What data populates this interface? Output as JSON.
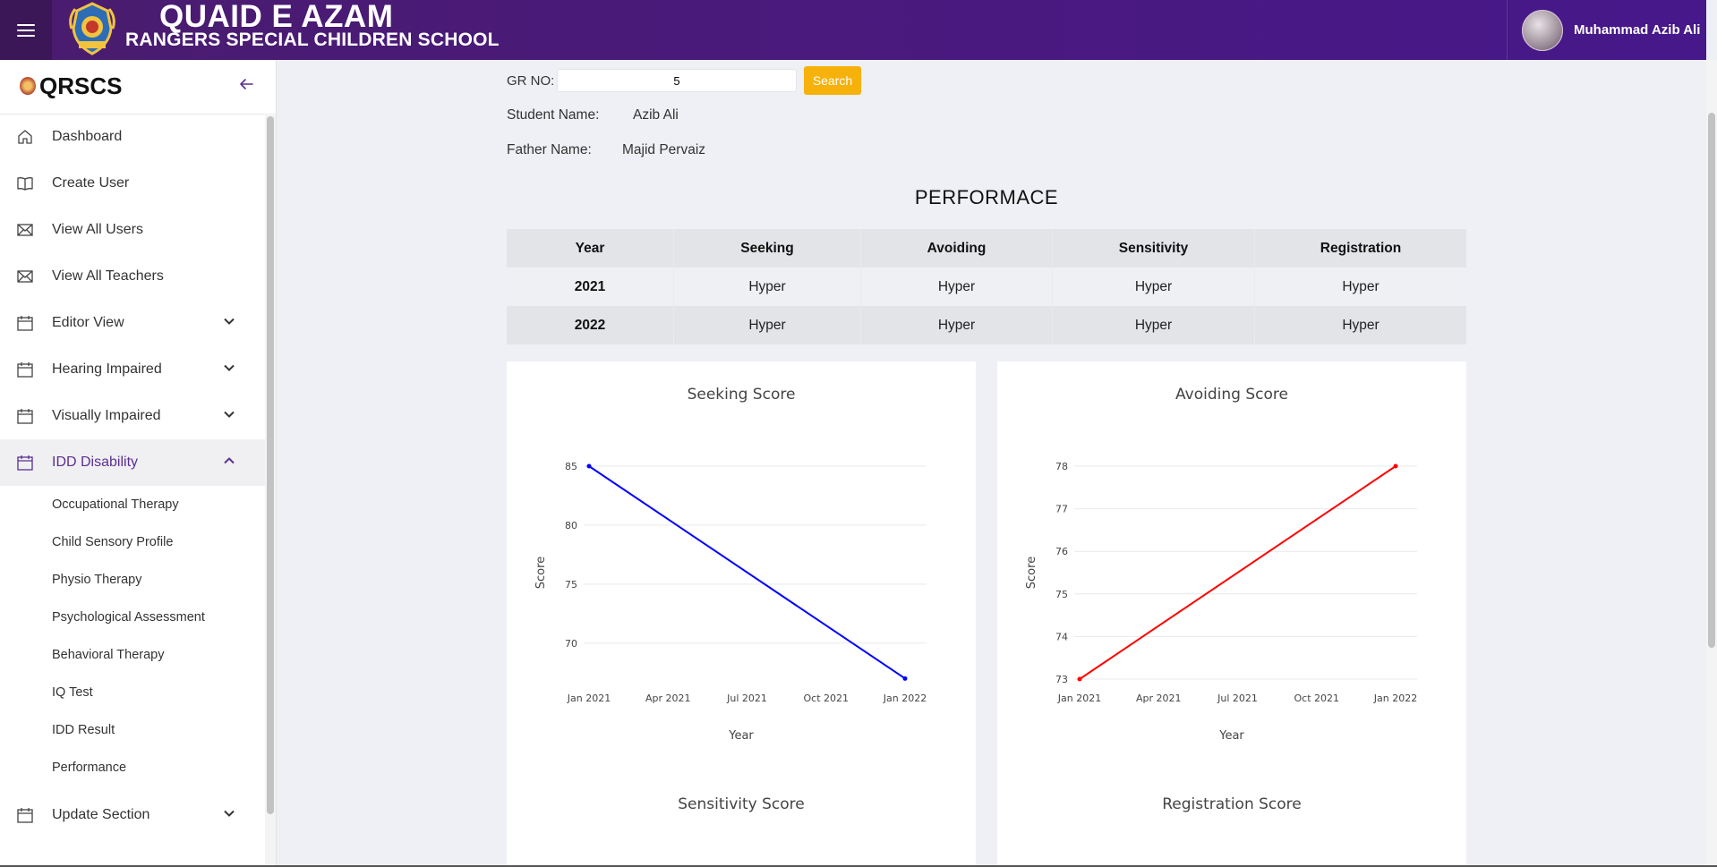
{
  "header": {
    "school_name_line1": "QUAID E AZAM",
    "school_name_line2": "RANGERS SPECIAL CHILDREN SCHOOL",
    "user_name": "Muhammad Azib Ali",
    "colors": {
      "bar": "#4a1a80",
      "hamburger_bg": "#3b1757"
    }
  },
  "sidebar": {
    "brand": "QRSCS",
    "menu": [
      {
        "label": "Dashboard",
        "icon": "home-icon"
      },
      {
        "label": "Create User",
        "icon": "book-icon"
      },
      {
        "label": "View All Users",
        "icon": "mail-icon"
      },
      {
        "label": "View All Teachers",
        "icon": "mail-icon"
      },
      {
        "label": "Editor View",
        "icon": "calendar-icon",
        "expandable": true
      },
      {
        "label": "Hearing Impaired",
        "icon": "calendar-icon",
        "expandable": true
      },
      {
        "label": "Visually Impaired",
        "icon": "calendar-icon",
        "expandable": true
      },
      {
        "label": "IDD Disability",
        "icon": "calendar-icon",
        "expandable": true,
        "expanded": true
      }
    ],
    "submenu": [
      "Occupational Therapy",
      "Child Sensory Profile",
      "Physio Therapy",
      "Psychological Assessment",
      "Behavioral Therapy",
      "IQ Test",
      "IDD Result",
      "Performance"
    ],
    "update_section": {
      "label": "Update Section",
      "icon": "calendar-icon"
    },
    "accent": "#5b2f91"
  },
  "search": {
    "gr_label": "GR NO:",
    "gr_value": "5",
    "button": "Search",
    "button_color": "#f6b10a"
  },
  "student": {
    "name_label": "Student Name:",
    "name": "Azib Ali",
    "father_label": "Father Name:",
    "father": "Majid Pervaiz"
  },
  "performance": {
    "title": "PERFORMACE",
    "columns": [
      "Year",
      "Seeking",
      "Avoiding",
      "Sensitivity",
      "Registration"
    ],
    "rows": [
      [
        "2021",
        "Hyper",
        "Hyper",
        "Hyper",
        "Hyper"
      ],
      [
        "2022",
        "Hyper",
        "Hyper",
        "Hyper",
        "Hyper"
      ]
    ]
  },
  "chart_data": [
    {
      "type": "line",
      "title": "Seeking Score",
      "xlabel": "Year",
      "ylabel": "Score",
      "x": [
        "2021-01-01",
        "2022-01-01"
      ],
      "x_ticks": [
        "Jan 2021",
        "Apr 2021",
        "Jul 2021",
        "Oct 2021",
        "Jan 2022"
      ],
      "y_ticks": [
        70,
        75,
        80,
        85
      ],
      "ylim": [
        66.95,
        85
      ],
      "values": [
        85,
        67
      ],
      "color": "#0000ff",
      "grid": true
    },
    {
      "type": "line",
      "title": "Avoiding Score",
      "xlabel": "Year",
      "ylabel": "Score",
      "x": [
        "2021-01-01",
        "2022-01-01"
      ],
      "x_ticks": [
        "Jan 2021",
        "Apr 2021",
        "Jul 2021",
        "Oct 2021",
        "Jan 2022"
      ],
      "y_ticks": [
        73,
        74,
        75,
        76,
        77,
        78
      ],
      "ylim": [
        73,
        78
      ],
      "values": [
        73,
        78
      ],
      "color": "#ff0000",
      "grid": true
    },
    {
      "type": "line",
      "title": "Sensitivity Score"
    },
    {
      "type": "line",
      "title": "Registration Score"
    }
  ]
}
